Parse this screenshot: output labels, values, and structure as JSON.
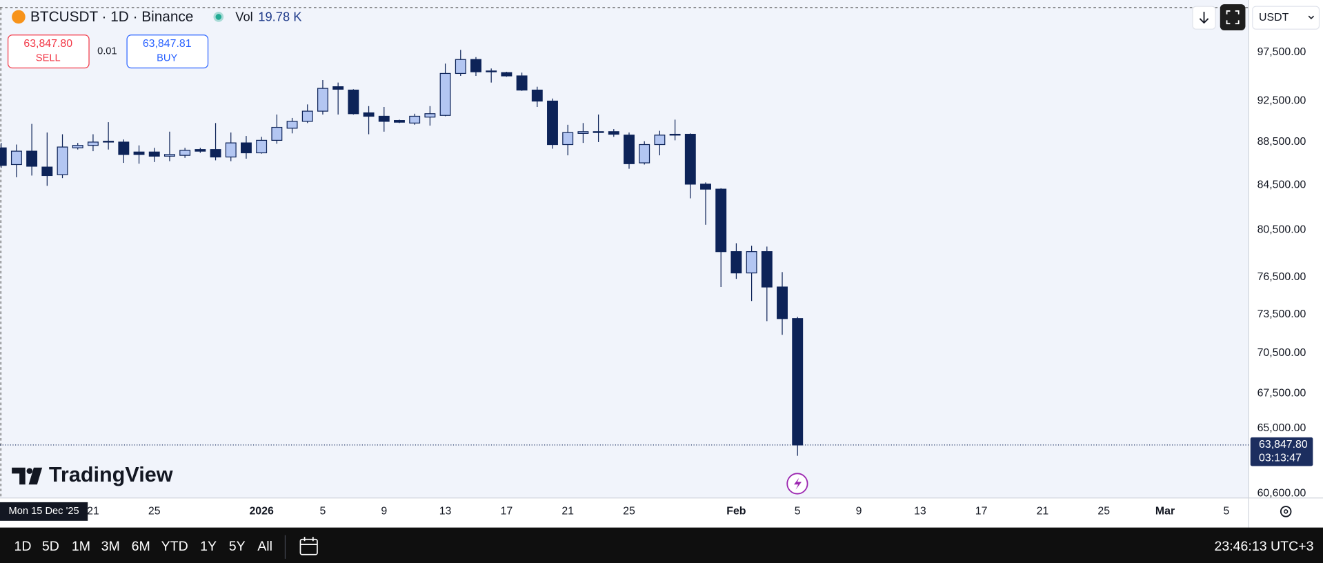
{
  "chart_data": {
    "type": "candlestick",
    "symbol_title": "BTCUSDT · 1D · Binance",
    "volume_label": "Vol",
    "volume": "19.78 K",
    "sell": {
      "price": "63,847.80",
      "label": "SELL"
    },
    "spread": "0.01",
    "buy": {
      "price": "63,847.81",
      "label": "BUY"
    },
    "currency": "USDT",
    "x": [
      "2025-12-15",
      "2025-12-16",
      "2025-12-17",
      "2025-12-18",
      "2025-12-19",
      "2025-12-20",
      "2025-12-21",
      "2025-12-22",
      "2025-12-23",
      "2025-12-24",
      "2025-12-25",
      "2025-12-26",
      "2025-12-27",
      "2025-12-28",
      "2025-12-29",
      "2025-12-30",
      "2025-12-31",
      "2026-01-01",
      "2026-01-02",
      "2026-01-03",
      "2026-01-04",
      "2026-01-05",
      "2026-01-06",
      "2026-01-07",
      "2026-01-08",
      "2026-01-09",
      "2026-01-10",
      "2026-01-11",
      "2026-01-12",
      "2026-01-13",
      "2026-01-14",
      "2026-01-15",
      "2026-01-16",
      "2026-01-17",
      "2026-01-18",
      "2026-01-19",
      "2026-01-20",
      "2026-01-21",
      "2026-01-22",
      "2026-01-23",
      "2026-01-24",
      "2026-01-25",
      "2026-01-26",
      "2026-01-27",
      "2026-01-28",
      "2026-01-29",
      "2026-01-30",
      "2026-01-31",
      "2026-02-01",
      "2026-02-02",
      "2026-02-03",
      "2026-02-04",
      "2026-02-05"
    ],
    "open": [
      87951,
      86383,
      87638,
      86148,
      85442,
      87951,
      88186,
      88500,
      88500,
      87559,
      87559,
      87167,
      87245,
      87794,
      87794,
      87089,
      88422,
      87481,
      88667,
      89834,
      90501,
      91500,
      93943,
      93604,
      91334,
      91000,
      90584,
      90335,
      90917,
      91084,
      95298,
      96738,
      95552,
      95383,
      95044,
      93604,
      92500,
      88265,
      89334,
      89501,
      89501,
      89168,
      86540,
      88265,
      89168,
      89251,
      84578,
      84123,
      78644,
      76857,
      78644,
      75700,
      73167
    ],
    "high": [
      88422,
      88265,
      90251,
      89418,
      89251,
      88422,
      89251,
      90418,
      88750,
      88186,
      87951,
      89501,
      87951,
      87951,
      90335,
      89418,
      89084,
      89001,
      91167,
      90834,
      92167,
      94620,
      94366,
      93689,
      92000,
      91917,
      90667,
      91250,
      92000,
      96314,
      97750,
      96992,
      95806,
      95467,
      95383,
      93943,
      92754,
      90168,
      90335,
      91167,
      89751,
      89418,
      88583,
      89584,
      90668,
      89334,
      84735,
      84198,
      79358,
      79144,
      79072,
      76928,
      73300
    ],
    "low": [
      86070,
      85208,
      85364,
      84425,
      85129,
      87794,
      87638,
      87794,
      86540,
      86462,
      86618,
      86697,
      87010,
      87481,
      86775,
      86697,
      86932,
      87402,
      88343,
      89334,
      90335,
      91167,
      91167,
      91167,
      89251,
      89501,
      90335,
      90168,
      90085,
      91000,
      95044,
      95044,
      94366,
      94959,
      93519,
      91917,
      87873,
      87245,
      88422,
      88500,
      89001,
      85991,
      86383,
      87245,
      88667,
      83292,
      80953,
      75700,
      76367,
      74567,
      72966,
      71899,
      63107
    ],
    "close": [
      86305,
      87638,
      86226,
      85364,
      88030,
      88186,
      88500,
      88583,
      87324,
      87324,
      87167,
      87324,
      87716,
      87638,
      87089,
      88422,
      87481,
      88667,
      89918,
      90501,
      91500,
      93773,
      93689,
      91250,
      91000,
      90501,
      90418,
      91000,
      91250,
      95298,
      96738,
      95467,
      95467,
      95044,
      93604,
      92500,
      88265,
      89418,
      89501,
      89418,
      89251,
      86462,
      88265,
      89168,
      89251,
      84578,
      84123,
      78644,
      76857,
      78644,
      75700,
      73167,
      63847.8
    ],
    "up_color": "#b3c6f2",
    "down_color": "#0d2358",
    "border_color": "#0d2358",
    "log_scale": true,
    "grid": false,
    "ylim": [
      60300,
      102400
    ],
    "yticks": [
      {
        "value": 97500,
        "label": "97,500.00"
      },
      {
        "value": 92500,
        "label": "92,500.00"
      },
      {
        "value": 88500,
        "label": "88,500.00"
      },
      {
        "value": 84500,
        "label": "84,500.00"
      },
      {
        "value": 80500,
        "label": "80,500.00"
      },
      {
        "value": 76500,
        "label": "76,500.00"
      },
      {
        "value": 73500,
        "label": "73,500.00"
      },
      {
        "value": 70500,
        "label": "70,500.00"
      },
      {
        "value": 67500,
        "label": "67,500.00"
      },
      {
        "value": 65000,
        "label": "65,000.00"
      },
      {
        "value": 60600,
        "label": "60,600.00"
      }
    ],
    "xlim": [
      "2025-12-15",
      "2026-03-06"
    ],
    "xticks": [
      {
        "value": "2025-12-21",
        "label": "21"
      },
      {
        "value": "2025-12-25",
        "label": "25"
      },
      {
        "value": "2026-01-01",
        "label": "2026"
      },
      {
        "value": "2026-01-05",
        "label": "5"
      },
      {
        "value": "2026-01-09",
        "label": "9"
      },
      {
        "value": "2026-01-13",
        "label": "13"
      },
      {
        "value": "2026-01-17",
        "label": "17"
      },
      {
        "value": "2026-01-21",
        "label": "21"
      },
      {
        "value": "2026-01-25",
        "label": "25"
      },
      {
        "value": "2026-02-01",
        "label": "Feb"
      },
      {
        "value": "2026-02-05",
        "label": "5"
      },
      {
        "value": "2026-02-09",
        "label": "9"
      },
      {
        "value": "2026-02-13",
        "label": "13"
      },
      {
        "value": "2026-02-17",
        "label": "17"
      },
      {
        "value": "2026-02-21",
        "label": "21"
      },
      {
        "value": "2026-02-25",
        "label": "25"
      },
      {
        "value": "2026-03-01",
        "label": "Mar"
      },
      {
        "value": "2026-03-05",
        "label": "5"
      }
    ],
    "crosshair_x_label": {
      "value": "2025-12-15",
      "label": "Mon 15 Dec '25"
    },
    "last_price": {
      "value": 63847.8,
      "label": "63,847.80",
      "countdown": "03:13:47"
    },
    "watermark": "TradingView"
  },
  "toolbar": {
    "ranges": [
      "1D",
      "5D",
      "1M",
      "3M",
      "6M",
      "YTD",
      "1Y",
      "5Y",
      "All"
    ],
    "clock": "23:46:13 UTC+3"
  }
}
